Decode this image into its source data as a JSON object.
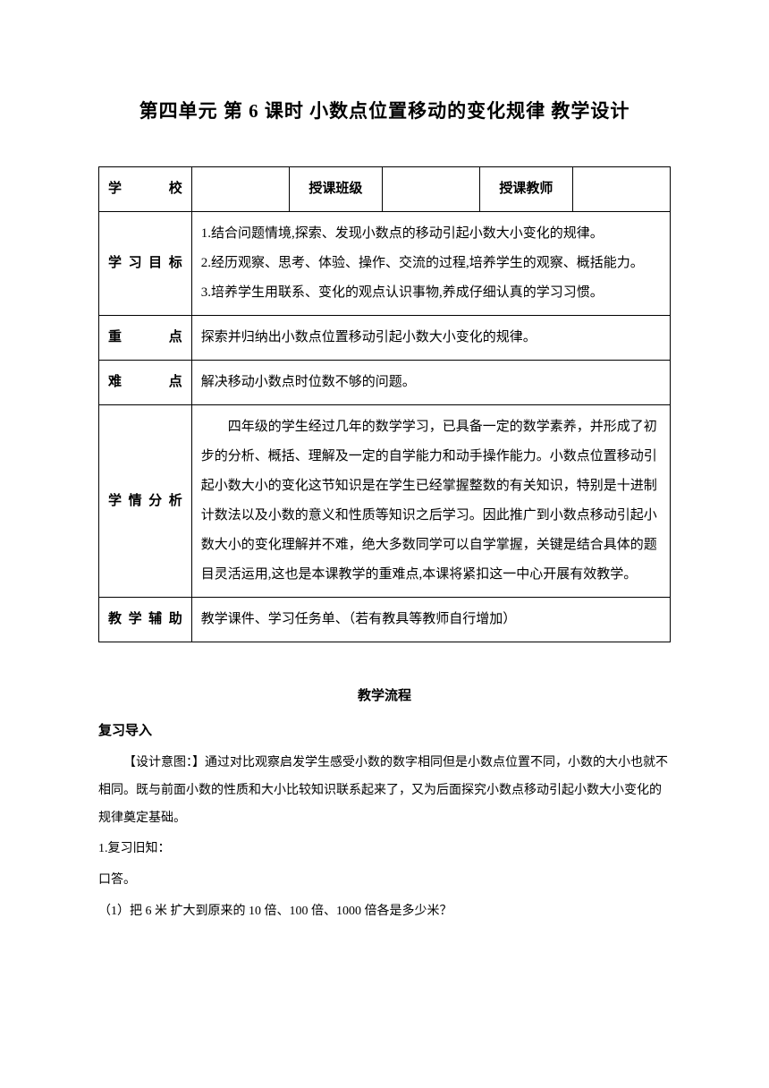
{
  "title": "第四单元 第 6 课时 小数点位置移动的变化规律 教学设计",
  "header_row": {
    "school_label": "学　　校",
    "class_label": "授课班级",
    "teacher_label": "授课教师"
  },
  "objectives": {
    "label": "学习目标",
    "item1": "1.结合问题情境,探索、发现小数点的移动引起小数大小变化的规律。",
    "item2": "2.经历观察、思考、体验、操作、交流的过程,培养学生的观察、概括能力。",
    "item3": "3.培养学生用联系、变化的观点认识事物,养成仔细认真的学习习惯。"
  },
  "key_point": {
    "label": "重　　点",
    "content": "探索并归纳出小数点位置移动引起小数大小变化的规律。"
  },
  "difficulty": {
    "label": "难　　点",
    "content": "解决移动小数点时位数不够的问题。"
  },
  "analysis": {
    "label": "学情分析",
    "content": "　　四年级的学生经过几年的数学学习，已具备一定的数学素养，并形成了初步的分析、概括、理解及一定的自学能力和动手操作能力。小数点位置移动引起小数大小的变化这节知识是在学生已经掌握整数的有关知识，特别是十进制计数法以及小数的意义和性质等知识之后学习。因此推广到小数点移动引起小数大小的变化理解并不难，绝大多数同学可以自学掌握，关键是结合具体的题目灵活运用,这也是本课教学的重难点,本课将紧扣这一中心开展有效教学。"
  },
  "aids": {
    "label": "教学辅助",
    "content": "教学课件、学习任务单、（若有教具等教师自行增加）"
  },
  "flow_title": "教学流程",
  "review_heading": "复习导入",
  "design_intent": "【设计意图：】通过对比观察启发学生感受小数的数字相同但是小数点位置不同，小数的大小也就不相同。既与前面小数的性质和大小比较知识联系起来了，又为后面探究小数点移动引起小数大小变化的规律奠定基础。",
  "review_line1": "1.复习旧知：",
  "review_line2": "口答。",
  "review_line3": "（1）把 6 米 扩大到原来的 10 倍、100 倍、1000 倍各是多少米？"
}
